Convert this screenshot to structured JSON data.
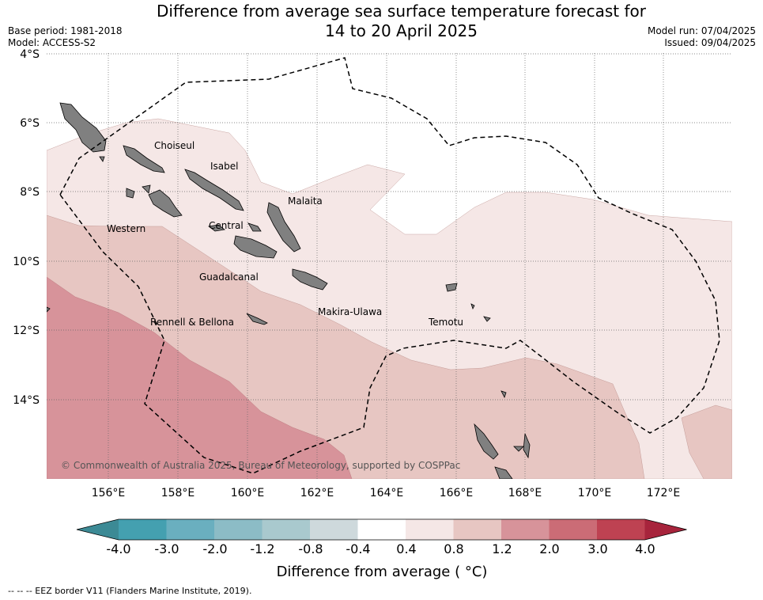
{
  "header": {
    "title_line1": "Difference from average sea surface temperature forecast for",
    "title_line2": "14 to 20 April 2025",
    "base_period": "Base period: 1981-2018",
    "model": "Model: ACCESS-S2",
    "model_run": "Model run: 07/04/2025",
    "issued": "Issued: 09/04/2025"
  },
  "map": {
    "lat_labels": [
      "4°S",
      "6°S",
      "8°S",
      "10°S",
      "12°S",
      "14°S"
    ],
    "lon_labels": [
      "156°E",
      "158°E",
      "160°E",
      "162°E",
      "164°E",
      "166°E",
      "168°E",
      "170°E",
      "172°E"
    ],
    "regions": [
      "Choiseul",
      "Isabel",
      "Malaita",
      "Western",
      "Central",
      "Guadalcanal",
      "Makira-Ulawa",
      "Rennell & Bellona",
      "Temotu"
    ],
    "copyright": "© Commonwealth of Australia 2025, Bureau of Meteorology, supported by COSPPac",
    "land_color": "#808080",
    "eez_style": "dashed"
  },
  "colorbar": {
    "ticks": [
      "-4.0",
      "-3.0",
      "-2.0",
      "-1.2",
      "-0.8",
      "-0.4",
      "0.4",
      "0.8",
      "1.2",
      "2.0",
      "3.0",
      "4.0"
    ],
    "colors": [
      "#44a0b0",
      "#6aafbf",
      "#8cbcc6",
      "#a9c9ce",
      "#ced9dc",
      "#ffffff",
      "#f5e7e6",
      "#e7c6c2",
      "#d7939a",
      "#cb6c76",
      "#be4252"
    ],
    "extend_low_color": "#3c8a95",
    "extend_high_color": "#a7243c",
    "label": "Difference from average ( °C)"
  },
  "footer": {
    "legend": "--  --  -- EEZ border V11 (Flanders Marine Institute, 2019)."
  }
}
